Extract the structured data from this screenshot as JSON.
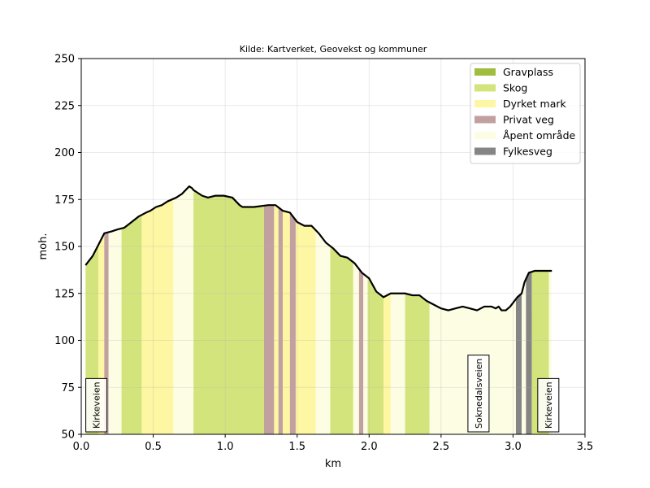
{
  "chart_data": {
    "type": "area",
    "title": "Kilde: Kartverket, Geovekst og kommuner",
    "xlabel": "km",
    "ylabel": "moh.",
    "xlim": [
      0,
      3.5
    ],
    "ylim": [
      50,
      250
    ],
    "xticks": [
      "0.0",
      "0.5",
      "1.0",
      "1.5",
      "2.0",
      "2.5",
      "3.0",
      "3.5"
    ],
    "yticks": [
      "50",
      "75",
      "100",
      "125",
      "150",
      "175",
      "200",
      "225",
      "250"
    ],
    "grid": true,
    "legend_position": "top-right",
    "legend": [
      {
        "label": "Gravplass",
        "color": "#a1bd3f"
      },
      {
        "label": "Skog",
        "color": "#d4e47d"
      },
      {
        "label": "Dyrket mark",
        "color": "#fdf6a3"
      },
      {
        "label": "Privat veg",
        "color": "#c2a0a0"
      },
      {
        "label": "Åpent område",
        "color": "#fdfde4"
      },
      {
        "label": "Fylkesveg",
        "color": "#858585"
      }
    ],
    "profile": {
      "x": [
        0.03,
        0.08,
        0.12,
        0.16,
        0.21,
        0.25,
        0.3,
        0.35,
        0.4,
        0.45,
        0.48,
        0.52,
        0.56,
        0.6,
        0.66,
        0.7,
        0.75,
        0.77,
        0.78,
        0.8,
        0.84,
        0.88,
        0.93,
        0.96,
        0.99,
        1.05,
        1.1,
        1.12,
        1.15,
        1.2,
        1.3,
        1.35,
        1.4,
        1.45,
        1.5,
        1.55,
        1.6,
        1.65,
        1.7,
        1.75,
        1.8,
        1.85,
        1.9,
        1.95,
        2.0,
        2.05,
        2.1,
        2.15,
        2.2,
        2.25,
        2.3,
        2.35,
        2.4,
        2.45,
        2.5,
        2.55,
        2.6,
        2.65,
        2.7,
        2.75,
        2.8,
        2.85,
        2.88,
        2.9,
        2.92,
        2.95,
        2.98,
        3.0,
        3.03,
        3.06,
        3.08,
        3.11,
        3.15,
        3.19,
        3.23,
        3.27
      ],
      "y": [
        140,
        145,
        151,
        157,
        158,
        159,
        160,
        163,
        166,
        168,
        169,
        171,
        172,
        174,
        176,
        178,
        182,
        181,
        180,
        179,
        177,
        176,
        177,
        177,
        177,
        176,
        172,
        171,
        171,
        171,
        172,
        172,
        169,
        168,
        163,
        161,
        161,
        157,
        152,
        149,
        145,
        144,
        141,
        136,
        133,
        126,
        123,
        125,
        125,
        125,
        124,
        124,
        121,
        119,
        117,
        116,
        117,
        118,
        117,
        116,
        118,
        118,
        117,
        118,
        116,
        116,
        118,
        120,
        123,
        125,
        131,
        136,
        137,
        137,
        137,
        137
      ]
    },
    "land_segments": [
      {
        "x0": 0.03,
        "x1": 0.12,
        "category": "Skog"
      },
      {
        "x0": 0.12,
        "x1": 0.16,
        "category": "Dyrket mark"
      },
      {
        "x0": 0.16,
        "x1": 0.19,
        "category": "Privat veg"
      },
      {
        "x0": 0.19,
        "x1": 0.28,
        "category": "Åpent område"
      },
      {
        "x0": 0.28,
        "x1": 0.42,
        "category": "Skog"
      },
      {
        "x0": 0.42,
        "x1": 0.64,
        "category": "Dyrket mark"
      },
      {
        "x0": 0.64,
        "x1": 0.78,
        "category": "Åpent område"
      },
      {
        "x0": 0.78,
        "x1": 1.27,
        "category": "Skog"
      },
      {
        "x0": 1.27,
        "x1": 1.34,
        "category": "Privat veg"
      },
      {
        "x0": 1.34,
        "x1": 1.37,
        "category": "Dyrket mark"
      },
      {
        "x0": 1.37,
        "x1": 1.4,
        "category": "Privat veg"
      },
      {
        "x0": 1.4,
        "x1": 1.45,
        "category": "Dyrket mark"
      },
      {
        "x0": 1.45,
        "x1": 1.49,
        "category": "Privat veg"
      },
      {
        "x0": 1.49,
        "x1": 1.63,
        "category": "Dyrket mark"
      },
      {
        "x0": 1.63,
        "x1": 1.73,
        "category": "Åpent område"
      },
      {
        "x0": 1.73,
        "x1": 1.89,
        "category": "Skog"
      },
      {
        "x0": 1.89,
        "x1": 1.93,
        "category": "Åpent område"
      },
      {
        "x0": 1.93,
        "x1": 1.96,
        "category": "Privat veg"
      },
      {
        "x0": 1.96,
        "x1": 1.99,
        "category": "Åpent område"
      },
      {
        "x0": 1.99,
        "x1": 2.1,
        "category": "Skog"
      },
      {
        "x0": 2.1,
        "x1": 2.15,
        "category": "Dyrket mark"
      },
      {
        "x0": 2.15,
        "x1": 2.25,
        "category": "Åpent område"
      },
      {
        "x0": 2.25,
        "x1": 2.42,
        "category": "Skog"
      },
      {
        "x0": 2.42,
        "x1": 3.02,
        "category": "Åpent område"
      },
      {
        "x0": 3.02,
        "x1": 3.06,
        "category": "Fylkesveg"
      },
      {
        "x0": 3.06,
        "x1": 3.09,
        "category": "Åpent område"
      },
      {
        "x0": 3.09,
        "x1": 3.13,
        "category": "Fylkesveg"
      },
      {
        "x0": 3.13,
        "x1": 3.25,
        "category": "Skog"
      },
      {
        "x0": 3.25,
        "x1": 3.27,
        "category": "Åpent område"
      }
    ],
    "road_labels": [
      {
        "label": "Kirkeveien",
        "x": 0.105
      },
      {
        "label": "Soknedalsveien",
        "x": 2.76
      },
      {
        "label": "Kirkeveien",
        "x": 3.245
      }
    ]
  }
}
